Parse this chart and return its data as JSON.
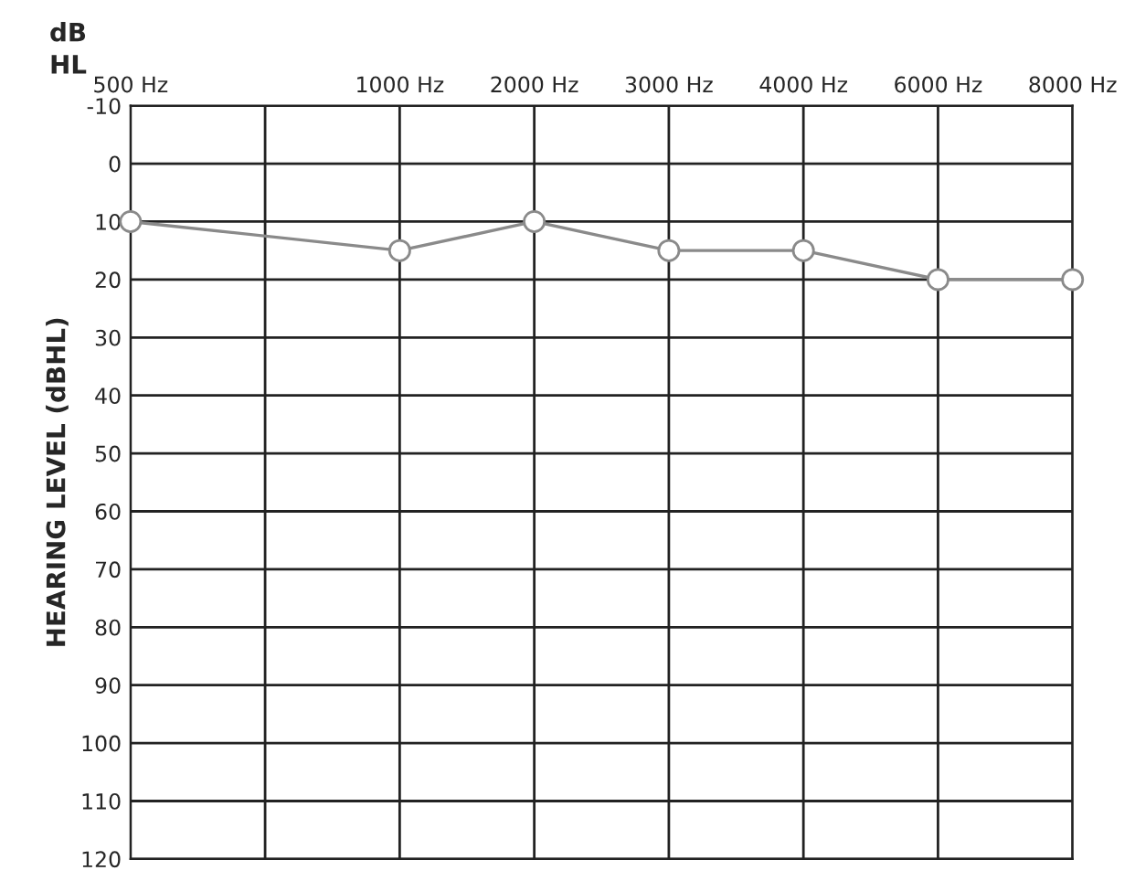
{
  "chart_data": {
    "type": "line",
    "ylabel": "HEARING LEVEL (dBHL)",
    "annotations": [
      "dB\nHL"
    ],
    "categories": [
      "500 Hz",
      null,
      "1000 Hz",
      "2000 Hz",
      "3000 Hz",
      "4000 Hz",
      "6000 Hz",
      "8000 Hz"
    ],
    "series": [
      {
        "color": "#8a8a8a",
        "values": [
          10,
          null,
          15,
          10,
          15,
          15,
          20,
          20
        ]
      }
    ],
    "ylim": [
      120,
      -10
    ],
    "yticks": [
      -10,
      0,
      10,
      20,
      30,
      40,
      50,
      60,
      70,
      80,
      90,
      100,
      110,
      120
    ],
    "grid": true,
    "marker": "circle",
    "line_style": "solid",
    "legend": false
  }
}
